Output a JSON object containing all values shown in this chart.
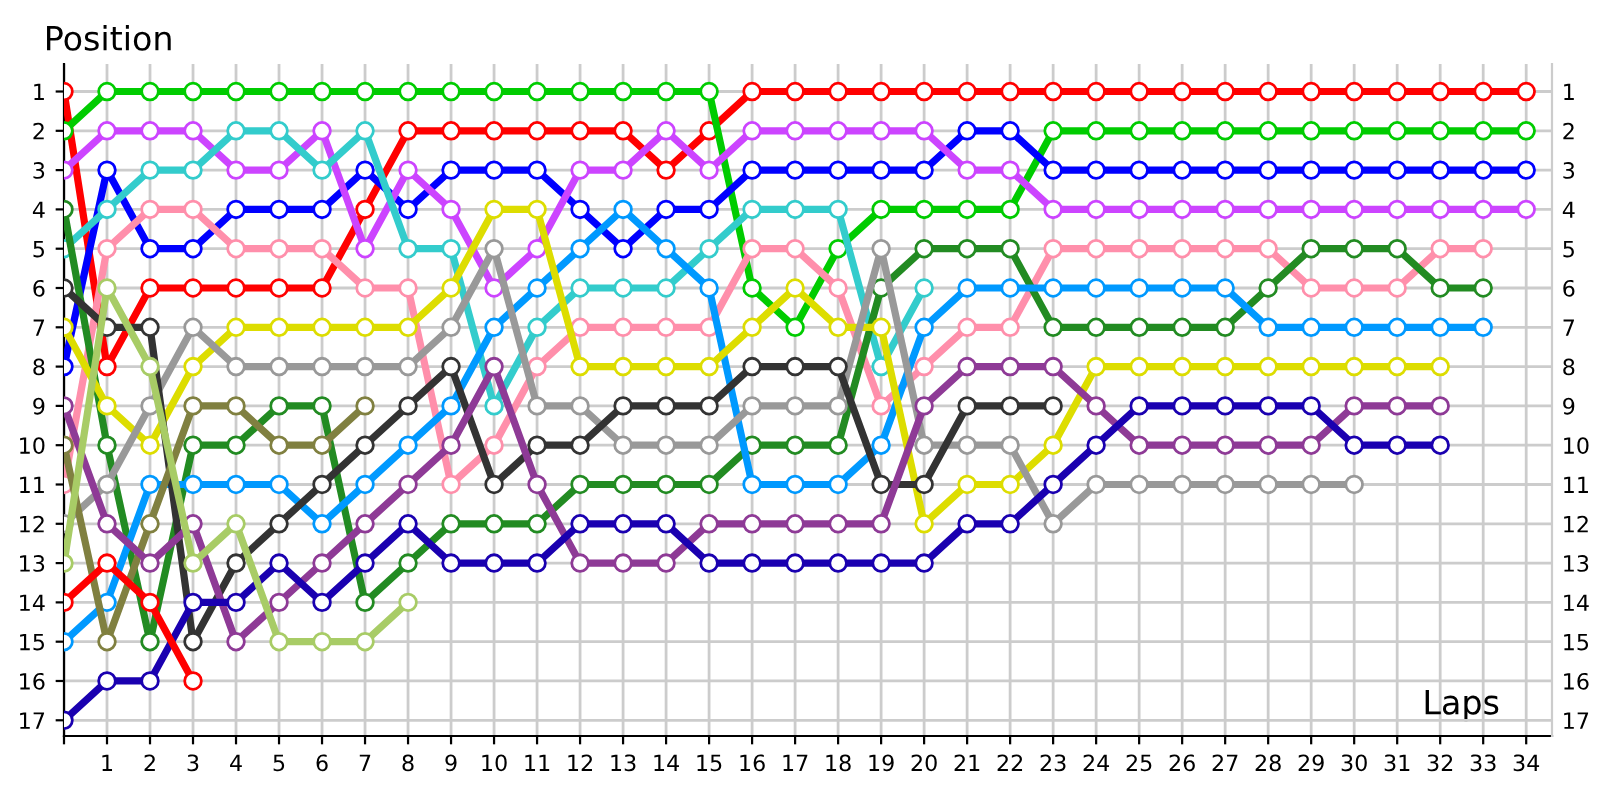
{
  "chart_data": {
    "type": "line",
    "xlabel": "Laps",
    "ylabel": "Position",
    "x": [
      0,
      1,
      2,
      3,
      4,
      5,
      6,
      7,
      8,
      9,
      10,
      11,
      12,
      13,
      14,
      15,
      16,
      17,
      18,
      19,
      20,
      21,
      22,
      23,
      24,
      25,
      26,
      27,
      28,
      29,
      30,
      31,
      32,
      33,
      34
    ],
    "xlim": [
      0,
      34.6
    ],
    "xticks": [
      {
        "value": 0,
        "label": null
      },
      1,
      2,
      3,
      4,
      5,
      6,
      7,
      8,
      9,
      10,
      11,
      12,
      13,
      14,
      15,
      16,
      17,
      18,
      19,
      20,
      21,
      22,
      23,
      24,
      25,
      26,
      27,
      28,
      29,
      30,
      31,
      32,
      33,
      34
    ],
    "ylim": [
      17.4,
      0.3
    ],
    "yticks": [
      1,
      2,
      3,
      4,
      5,
      6,
      7,
      8,
      9,
      10,
      11,
      12,
      13,
      14,
      15,
      16,
      17
    ],
    "y2lim": [
      17.4,
      0.3
    ],
    "y2ticks": [
      1,
      2,
      3,
      4,
      5,
      6,
      7,
      8,
      9,
      10,
      11,
      12,
      13,
      14,
      15,
      16,
      17
    ],
    "grid": true,
    "marker": "circle",
    "line_style": "solid",
    "series": [
      {
        "color": "#ff0000",
        "values": [
          1,
          8,
          6,
          6,
          6,
          6,
          6,
          4,
          2,
          2,
          2,
          2,
          2,
          2,
          3,
          2,
          1,
          1,
          1,
          1,
          1,
          1,
          1,
          1,
          1,
          1,
          1,
          1,
          1,
          1,
          1,
          1,
          1,
          1,
          1
        ]
      },
      {
        "color": "#00cc00",
        "values": [
          2,
          1,
          1,
          1,
          1,
          1,
          1,
          1,
          1,
          1,
          1,
          1,
          1,
          1,
          1,
          1,
          6,
          7,
          5,
          4,
          4,
          4,
          4,
          2,
          2,
          2,
          2,
          2,
          2,
          2,
          2,
          2,
          2,
          2,
          2
        ]
      },
      {
        "color": "#0000ff",
        "values": [
          8,
          3,
          5,
          5,
          4,
          4,
          4,
          3,
          4,
          3,
          3,
          3,
          4,
          5,
          4,
          4,
          3,
          3,
          3,
          3,
          3,
          2,
          2,
          3,
          3,
          3,
          3,
          3,
          3,
          3,
          3,
          3,
          3,
          3,
          3
        ]
      },
      {
        "color": "#cc44ff",
        "values": [
          3,
          2,
          2,
          2,
          3,
          3,
          2,
          5,
          3,
          4,
          6,
          5,
          3,
          3,
          2,
          3,
          2,
          2,
          2,
          2,
          2,
          3,
          3,
          4,
          4,
          4,
          4,
          4,
          4,
          4,
          4,
          4,
          4,
          4,
          4
        ]
      },
      {
        "color": "#33cccc",
        "values": [
          5,
          4,
          3,
          3,
          2,
          2,
          3,
          2,
          5,
          5,
          9,
          7,
          6,
          6,
          6,
          5,
          4,
          4,
          4,
          8,
          6,
          null,
          null,
          null,
          null,
          null,
          null,
          null,
          null,
          null,
          null,
          null,
          null,
          null,
          null
        ]
      },
      {
        "color": "#ff8fab",
        "values": [
          11,
          5,
          4,
          4,
          5,
          5,
          5,
          6,
          6,
          11,
          10,
          8,
          7,
          7,
          7,
          7,
          5,
          5,
          6,
          9,
          8,
          7,
          7,
          5,
          5,
          5,
          5,
          5,
          5,
          6,
          6,
          6,
          5,
          5,
          null
        ]
      },
      {
        "color": "#228b22",
        "values": [
          4,
          10,
          15,
          10,
          10,
          9,
          9,
          14,
          13,
          12,
          12,
          12,
          11,
          11,
          11,
          11,
          10,
          10,
          10,
          6,
          5,
          5,
          5,
          7,
          7,
          7,
          7,
          7,
          6,
          5,
          5,
          5,
          6,
          6,
          null
        ]
      },
      {
        "color": "#0099ff",
        "values": [
          15,
          14,
          11,
          11,
          11,
          11,
          12,
          11,
          10,
          9,
          7,
          6,
          5,
          4,
          5,
          6,
          11,
          11,
          11,
          10,
          7,
          6,
          6,
          6,
          6,
          6,
          6,
          6,
          7,
          7,
          7,
          7,
          7,
          7,
          null
        ]
      },
      {
        "color": "#dddd00",
        "values": [
          7,
          9,
          10,
          8,
          7,
          7,
          7,
          7,
          7,
          6,
          4,
          4,
          8,
          8,
          8,
          8,
          7,
          6,
          7,
          7,
          12,
          11,
          11,
          10,
          8,
          8,
          8,
          8,
          8,
          8,
          8,
          8,
          8,
          null,
          null
        ]
      },
      {
        "color": "#999999",
        "values": [
          12,
          11,
          9,
          7,
          8,
          8,
          8,
          8,
          8,
          7,
          5,
          9,
          9,
          10,
          10,
          10,
          9,
          9,
          9,
          5,
          10,
          10,
          10,
          12,
          11,
          11,
          11,
          11,
          11,
          11,
          11,
          null,
          null,
          null,
          null
        ]
      },
      {
        "color": "#333333",
        "values": [
          6,
          7,
          7,
          15,
          13,
          12,
          11,
          10,
          9,
          8,
          11,
          10,
          10,
          9,
          9,
          9,
          8,
          8,
          8,
          11,
          11,
          9,
          9,
          9,
          null,
          null,
          null,
          null,
          null,
          null,
          null,
          null,
          null,
          null,
          null
        ]
      },
      {
        "color": "#808040",
        "values": [
          10,
          15,
          12,
          9,
          9,
          10,
          10,
          9,
          null,
          null,
          null,
          null,
          null,
          null,
          null,
          null,
          null,
          null,
          null,
          null,
          null,
          null,
          null,
          null,
          null,
          null,
          null,
          null,
          null,
          null,
          null,
          null,
          null,
          null,
          null
        ]
      },
      {
        "color": "#8e3a96",
        "values": [
          9,
          12,
          13,
          12,
          15,
          14,
          13,
          12,
          11,
          10,
          8,
          11,
          13,
          13,
          13,
          12,
          12,
          12,
          12,
          12,
          9,
          8,
          8,
          8,
          9,
          10,
          10,
          10,
          10,
          10,
          9,
          9,
          9,
          null,
          null
        ]
      },
      {
        "color": "#1a00b0",
        "values": [
          17,
          16,
          16,
          14,
          14,
          13,
          14,
          13,
          12,
          13,
          13,
          13,
          12,
          12,
          12,
          13,
          13,
          13,
          13,
          13,
          13,
          12,
          12,
          11,
          10,
          9,
          9,
          9,
          9,
          9,
          10,
          10,
          10,
          null,
          null
        ]
      },
      {
        "color": "#a8cc66",
        "values": [
          13,
          6,
          8,
          13,
          12,
          15,
          15,
          15,
          14,
          null,
          null,
          null,
          null,
          null,
          null,
          null,
          null,
          null,
          null,
          null,
          null,
          null,
          null,
          null,
          null,
          null,
          null,
          null,
          null,
          null,
          null,
          null,
          null,
          null,
          null
        ]
      },
      {
        "color": "#ff0000",
        "values": [
          14,
          13,
          14,
          16,
          null,
          null,
          null,
          null,
          null,
          null,
          null,
          null,
          null,
          null,
          null,
          null,
          null,
          null,
          null,
          null,
          null,
          null,
          null,
          null,
          null,
          null,
          null,
          null,
          null,
          null,
          null,
          null,
          null,
          null,
          null
        ]
      }
    ]
  }
}
